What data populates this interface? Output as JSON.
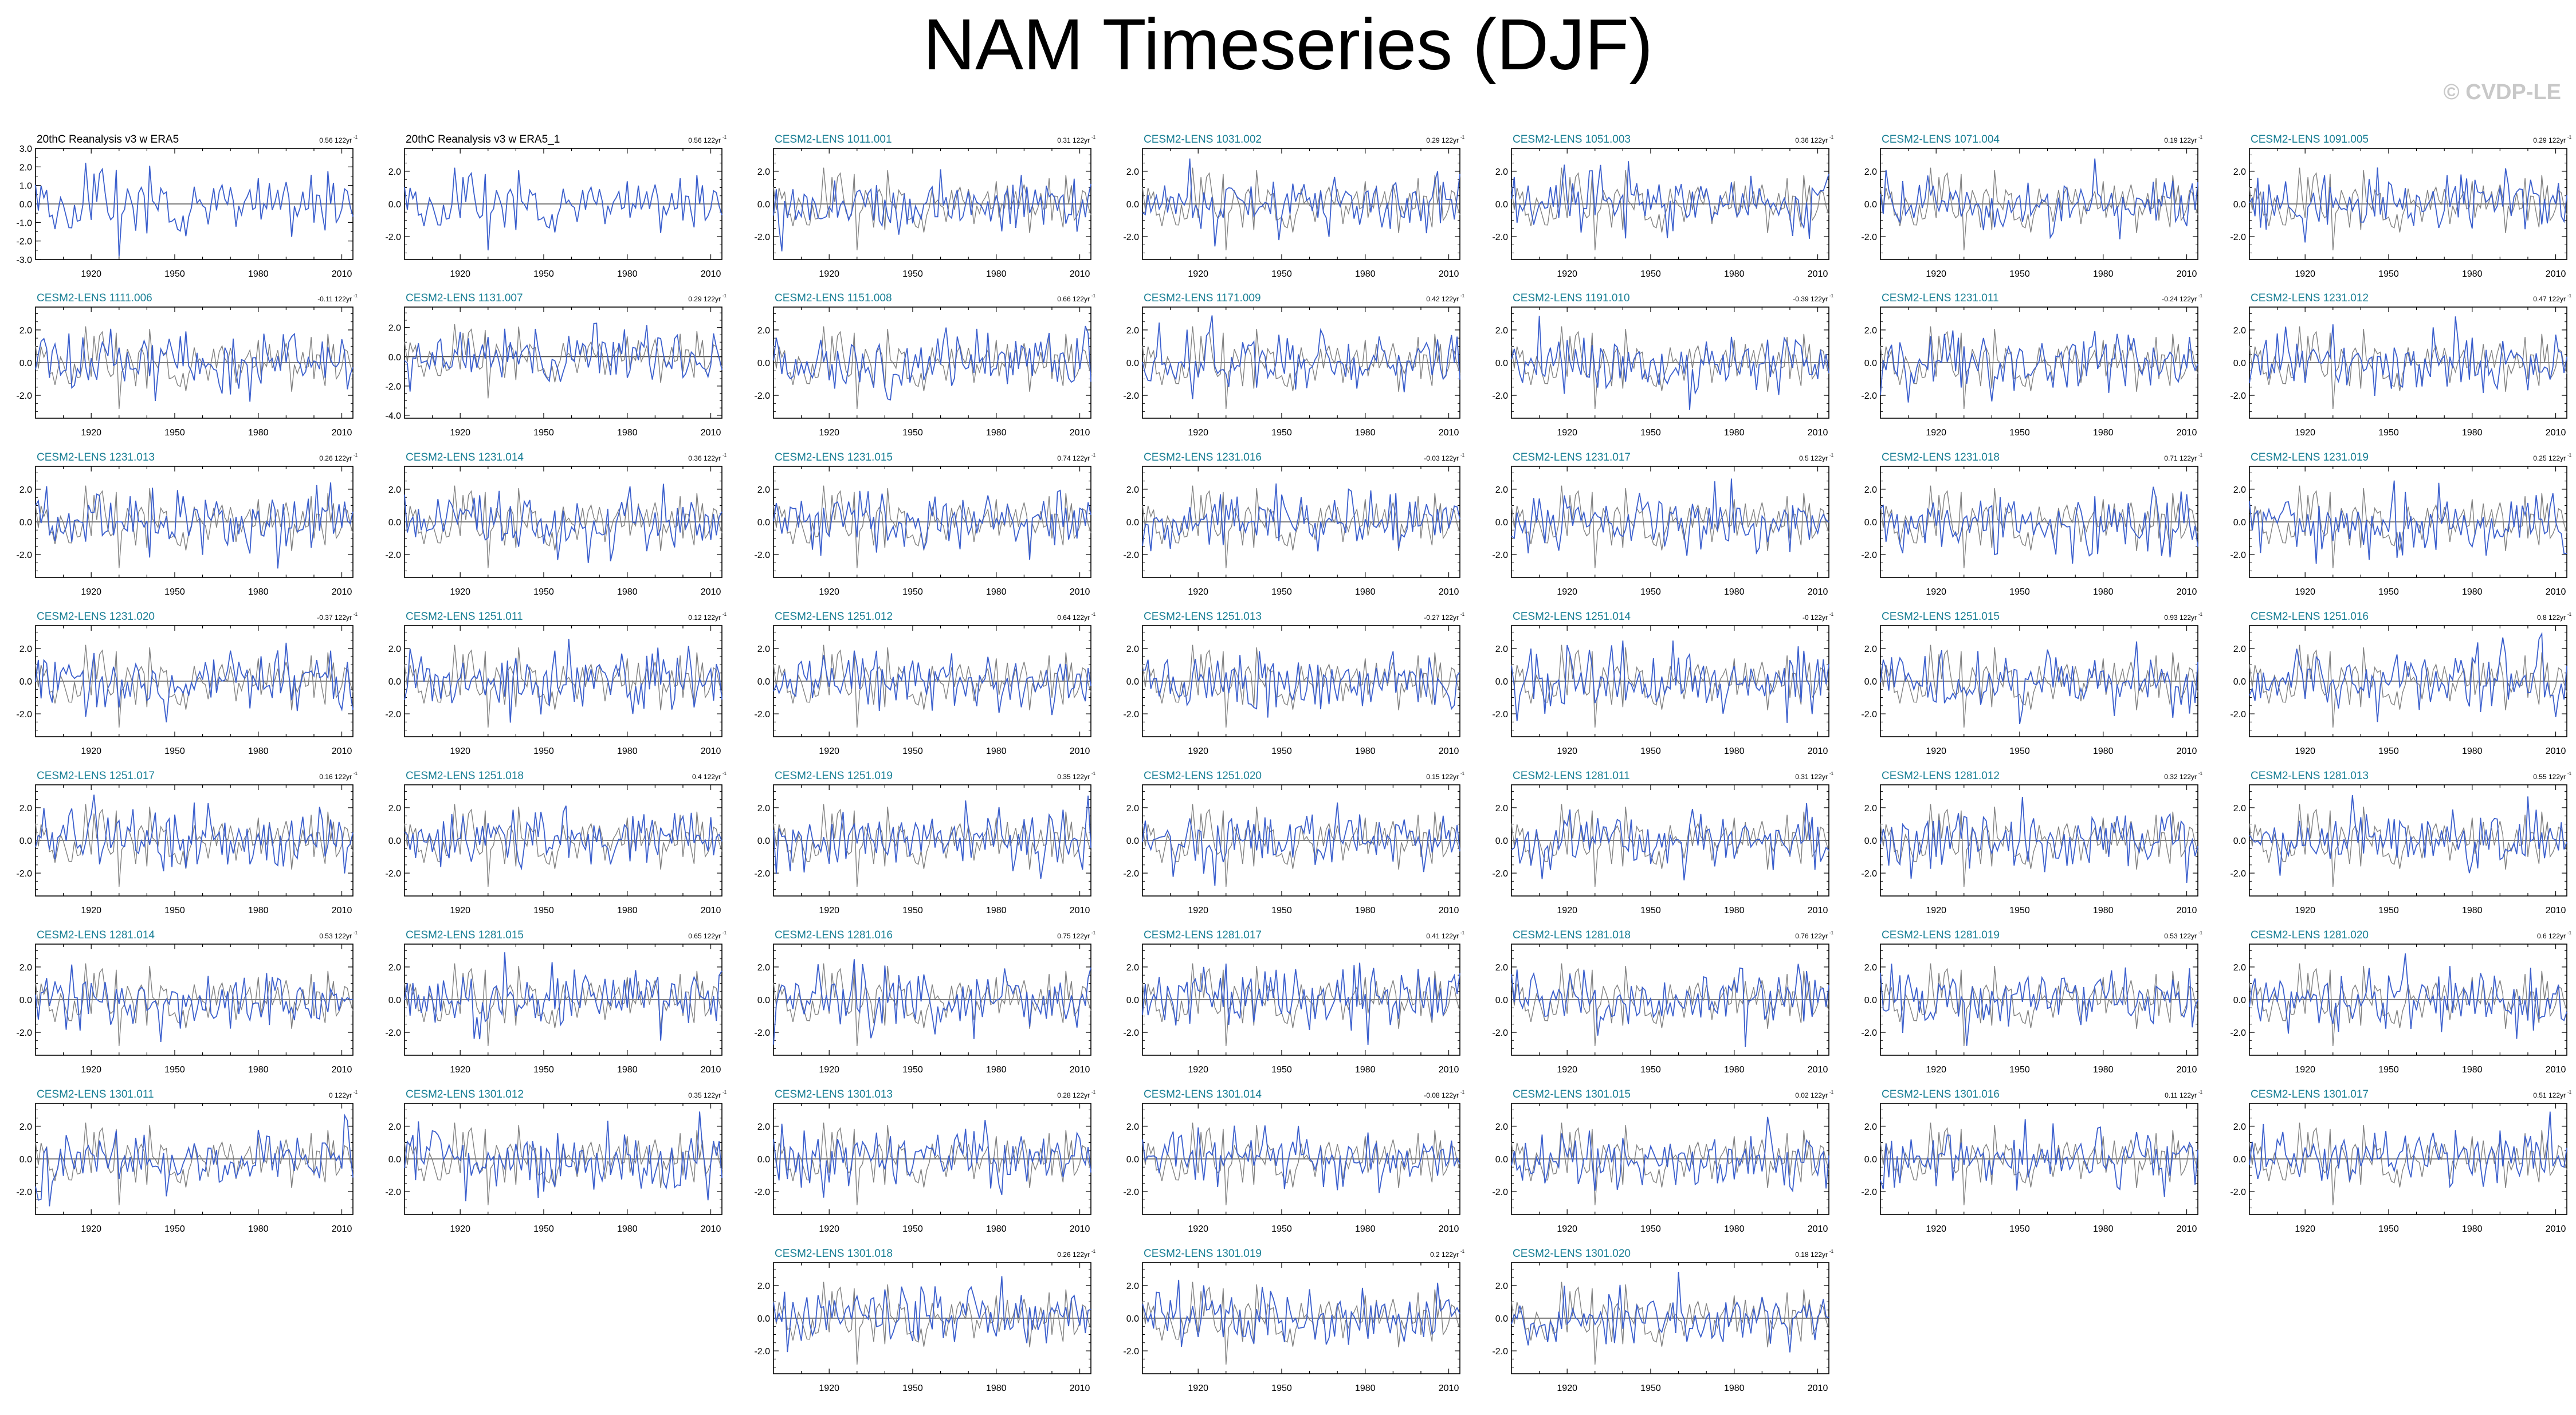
{
  "title": "NAM Timeseries (DJF)",
  "credit": "© CVDP-LE",
  "colors": {
    "model": "#3b5fcd",
    "observed": "#808080",
    "label_teal": "#1a7f95",
    "label_black": "#000000"
  },
  "chart_data": {
    "type": "line",
    "x_range": [
      1900,
      2014
    ],
    "x_ticks": [
      1920,
      1950,
      1980,
      2010
    ],
    "y_ticks_default": [
      "2.0",
      "0.0",
      "-2.0"
    ],
    "y_range_default": [
      -3.4,
      3.4
    ],
    "panels": [
      {
        "name": "20thC Reanalysis v3 w ERA5",
        "trend": "0.56 122yr",
        "y_ticks": [
          "3.0",
          "2.0",
          "1.0",
          "0.0",
          "-1.0",
          "-2.0",
          "-3.0"
        ],
        "y_range": [
          -3.0,
          3.0
        ],
        "obs": true
      },
      {
        "name": "20thC Reanalysis v3 w ERA5_1",
        "trend": "0.56 122yr",
        "obs": true
      },
      {
        "name": "CESM2-LENS 1011.001",
        "trend": "0.31 122yr"
      },
      {
        "name": "CESM2-LENS 1031.002",
        "trend": "0.29 122yr"
      },
      {
        "name": "CESM2-LENS 1051.003",
        "trend": "0.36 122yr"
      },
      {
        "name": "CESM2-LENS 1071.004",
        "trend": "0.19 122yr"
      },
      {
        "name": "CESM2-LENS 1091.005",
        "trend": "0.29 122yr"
      },
      {
        "name": "CESM2-LENS 1111.006",
        "trend": "-0.11 122yr"
      },
      {
        "name": "CESM2-LENS 1131.007",
        "trend": "0.29 122yr",
        "y_ticks": [
          "2.0",
          "0.0",
          "-2.0",
          "-4.0"
        ],
        "y_range": [
          -4.2,
          3.4
        ]
      },
      {
        "name": "CESM2-LENS 1151.008",
        "trend": "0.66 122yr"
      },
      {
        "name": "CESM2-LENS 1171.009",
        "trend": "0.42 122yr"
      },
      {
        "name": "CESM2-LENS 1191.010",
        "trend": "-0.39 122yr"
      },
      {
        "name": "CESM2-LENS 1231.011",
        "trend": "-0.24 122yr"
      },
      {
        "name": "CESM2-LENS 1231.012",
        "trend": "0.47 122yr"
      },
      {
        "name": "CESM2-LENS 1231.013",
        "trend": "0.26 122yr"
      },
      {
        "name": "CESM2-LENS 1231.014",
        "trend": "0.36 122yr"
      },
      {
        "name": "CESM2-LENS 1231.015",
        "trend": "0.74 122yr"
      },
      {
        "name": "CESM2-LENS 1231.016",
        "trend": "-0.03 122yr"
      },
      {
        "name": "CESM2-LENS 1231.017",
        "trend": "0.5 122yr"
      },
      {
        "name": "CESM2-LENS 1231.018",
        "trend": "0.71 122yr"
      },
      {
        "name": "CESM2-LENS 1231.019",
        "trend": "0.25 122yr"
      },
      {
        "name": "CESM2-LENS 1231.020",
        "trend": "-0.37 122yr"
      },
      {
        "name": "CESM2-LENS 1251.011",
        "trend": "0.12 122yr"
      },
      {
        "name": "CESM2-LENS 1251.012",
        "trend": "0.64 122yr"
      },
      {
        "name": "CESM2-LENS 1251.013",
        "trend": "-0.27 122yr"
      },
      {
        "name": "CESM2-LENS 1251.014",
        "trend": "-0 122yr"
      },
      {
        "name": "CESM2-LENS 1251.015",
        "trend": "0.93 122yr"
      },
      {
        "name": "CESM2-LENS 1251.016",
        "trend": "0.8 122yr"
      },
      {
        "name": "CESM2-LENS 1251.017",
        "trend": "0.16 122yr"
      },
      {
        "name": "CESM2-LENS 1251.018",
        "trend": "0.4 122yr"
      },
      {
        "name": "CESM2-LENS 1251.019",
        "trend": "0.35 122yr"
      },
      {
        "name": "CESM2-LENS 1251.020",
        "trend": "0.15 122yr"
      },
      {
        "name": "CESM2-LENS 1281.011",
        "trend": "0.31 122yr"
      },
      {
        "name": "CESM2-LENS 1281.012",
        "trend": "0.32 122yr"
      },
      {
        "name": "CESM2-LENS 1281.013",
        "trend": "0.55 122yr"
      },
      {
        "name": "CESM2-LENS 1281.014",
        "trend": "0.53 122yr"
      },
      {
        "name": "CESM2-LENS 1281.015",
        "trend": "0.65 122yr"
      },
      {
        "name": "CESM2-LENS 1281.016",
        "trend": "0.75 122yr"
      },
      {
        "name": "CESM2-LENS 1281.017",
        "trend": "0.41 122yr"
      },
      {
        "name": "CESM2-LENS 1281.018",
        "trend": "0.76 122yr"
      },
      {
        "name": "CESM2-LENS 1281.019",
        "trend": "0.53 122yr"
      },
      {
        "name": "CESM2-LENS 1281.020",
        "trend": "0.6 122yr"
      },
      {
        "name": "CESM2-LENS 1301.011",
        "trend": "0 122yr"
      },
      {
        "name": "CESM2-LENS 1301.012",
        "trend": "0.35 122yr"
      },
      {
        "name": "CESM2-LENS 1301.013",
        "trend": "0.28 122yr"
      },
      {
        "name": "CESM2-LENS 1301.014",
        "trend": "-0.08 122yr"
      },
      {
        "name": "CESM2-LENS 1301.015",
        "trend": "0.02 122yr"
      },
      {
        "name": "CESM2-LENS 1301.016",
        "trend": "0.11 122yr"
      },
      {
        "name": "CESM2-LENS 1301.017",
        "trend": "0.51 122yr"
      },
      {
        "name": "CESM2-LENS 1301.018",
        "trend": "0.26 122yr"
      },
      {
        "name": "CESM2-LENS 1301.019",
        "trend": "0.2 122yr"
      },
      {
        "name": "CESM2-LENS 1301.020",
        "trend": "0.18 122yr"
      }
    ]
  }
}
